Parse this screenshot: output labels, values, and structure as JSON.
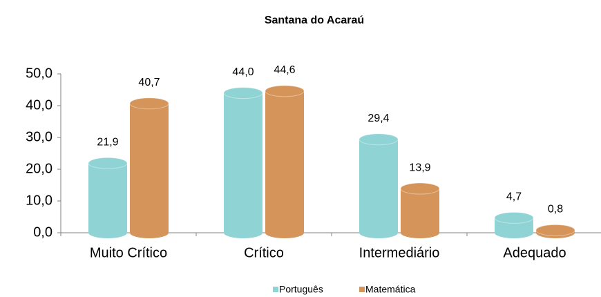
{
  "chart_data": {
    "type": "bar",
    "title": "Santana do Acaraú",
    "categories": [
      "Muito Crítico",
      "Crítico",
      "Intermediário",
      "Adequado"
    ],
    "series": [
      {
        "name": "Português",
        "color": "#8fd3d4",
        "values": [
          21.9,
          44.0,
          29.4,
          4.7
        ],
        "value_labels": [
          "21,9",
          "44,0",
          "29,4",
          "4,7"
        ]
      },
      {
        "name": "Matemática",
        "color": "#d4945a",
        "values": [
          40.7,
          44.6,
          13.9,
          0.8
        ],
        "value_labels": [
          "40,7",
          "44,6",
          "13,9",
          "0,8"
        ]
      }
    ],
    "ylim": [
      0,
      50
    ],
    "yticks": [
      {
        "value": 0,
        "label": "0,0"
      },
      {
        "value": 10,
        "label": "10,0"
      },
      {
        "value": 20,
        "label": "20,0"
      },
      {
        "value": 30,
        "label": "30,0"
      },
      {
        "value": 40,
        "label": "40,0"
      },
      {
        "value": 50,
        "label": "50,0"
      }
    ],
    "legend": "bottom"
  }
}
